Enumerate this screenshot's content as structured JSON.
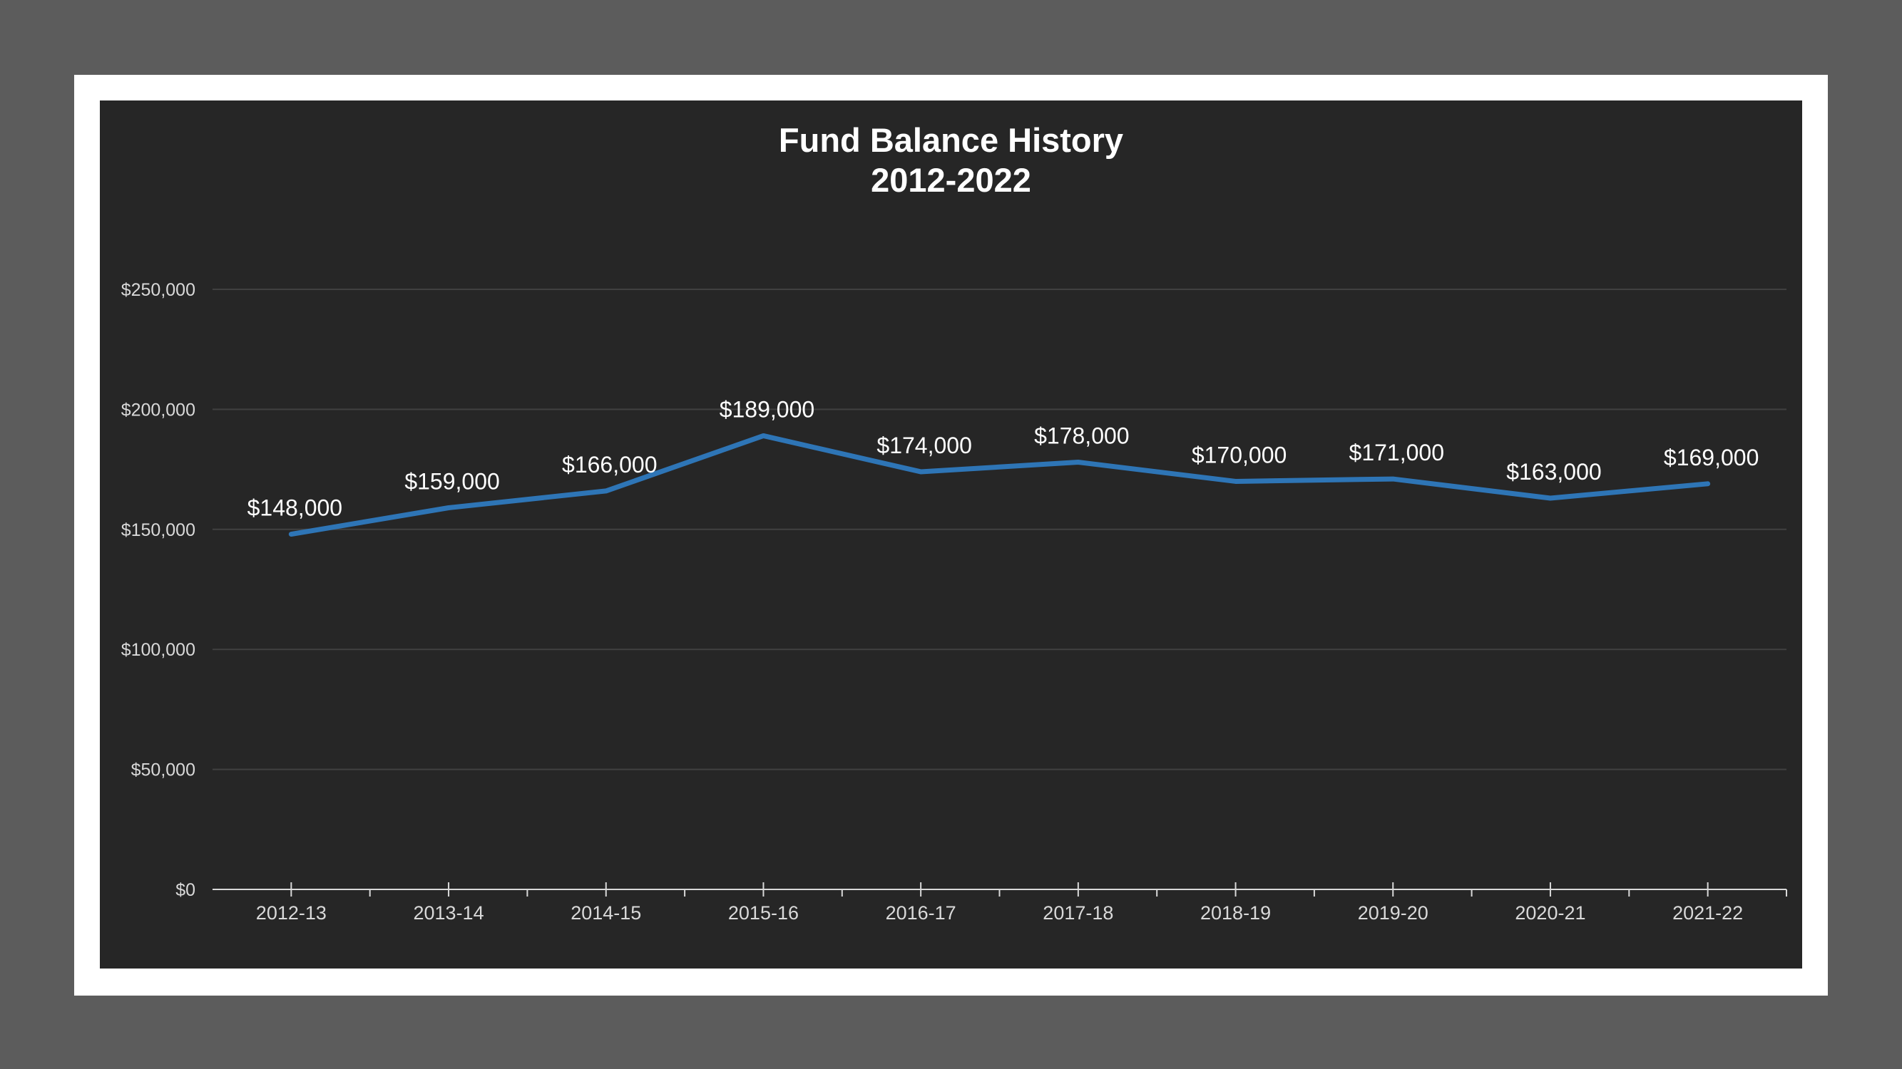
{
  "chart_data": {
    "type": "line",
    "title": "Fund Balance History",
    "subtitle": "2012-2022",
    "categories": [
      "2012-13",
      "2013-14",
      "2014-15",
      "2015-16",
      "2016-17",
      "2017-18",
      "2018-19",
      "2019-20",
      "2020-21",
      "2021-22"
    ],
    "series": [
      {
        "values": [
          148000,
          159000,
          166000,
          189000,
          174000,
          178000,
          170000,
          171000,
          163000,
          169000
        ],
        "labels": [
          "$148,000",
          "$159,000",
          "$166,000",
          "$189,000",
          "$174,000",
          "$178,000",
          "$170,000",
          "$171,000",
          "$163,000",
          "$169,000"
        ],
        "color": "#2e75b6"
      }
    ],
    "ylim": [
      0,
      250000
    ],
    "yticks": [
      0,
      50000,
      100000,
      150000,
      200000,
      250000
    ],
    "ytick_labels": [
      "$0",
      "$50,000",
      "$100,000",
      "$150,000",
      "$200,000",
      "$250,000"
    ],
    "xlabel": "",
    "ylabel": "",
    "grid": true,
    "colors": {
      "background": "#262626",
      "grid": "#404040",
      "axis": "#d9d9d9",
      "line": "#2e75b6"
    }
  }
}
